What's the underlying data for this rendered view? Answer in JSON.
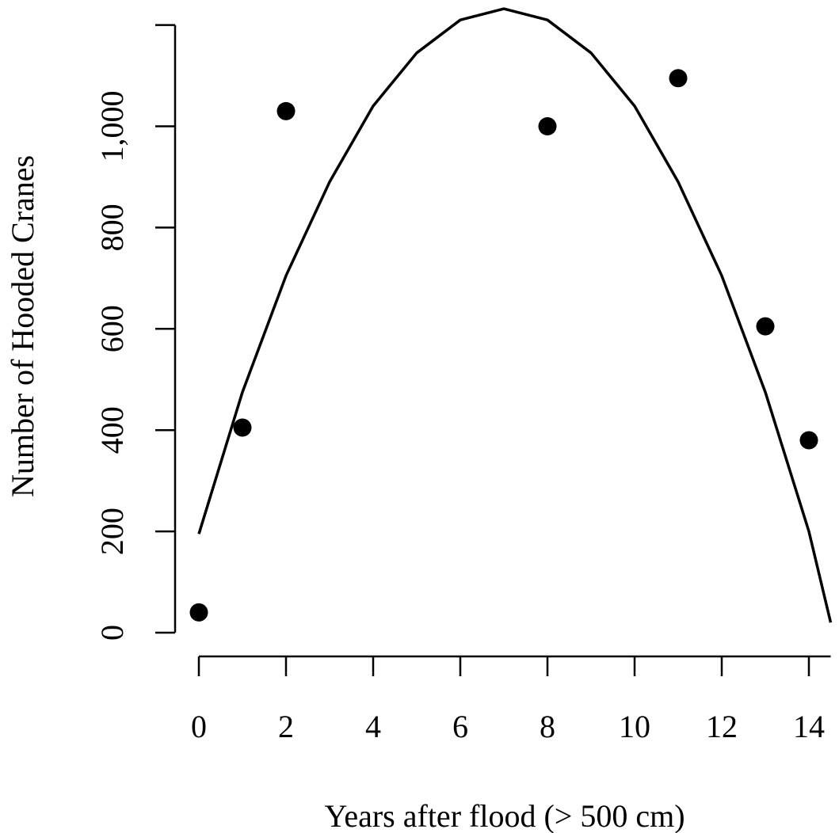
{
  "chart_data": {
    "type": "scatter",
    "xlabel": "Years after flood (> 500 cm)",
    "ylabel": "Number of Hooded Cranes",
    "xlim": [
      0,
      14.5
    ],
    "ylim": [
      0,
      1200
    ],
    "x_ticks": [
      0,
      2,
      4,
      6,
      8,
      10,
      12,
      14
    ],
    "y_ticks": [
      0,
      200,
      400,
      600,
      800,
      1000
    ],
    "y_tick_labels": [
      "0",
      "200",
      "400",
      "600",
      "800",
      "1,000"
    ],
    "grid": false,
    "legend": "none",
    "series": [
      {
        "kind": "points",
        "x": [
          0,
          1,
          2,
          8,
          11,
          13,
          14
        ],
        "y": [
          40,
          405,
          1030,
          1000,
          1095,
          605,
          380
        ]
      },
      {
        "kind": "fitted-curve",
        "x": [
          0,
          1,
          2,
          3,
          4,
          5,
          6,
          7,
          8,
          9,
          10,
          11,
          12,
          13,
          14,
          14.5
        ],
        "y": [
          195,
          475,
          705,
          890,
          1040,
          1145,
          1210,
          1232,
          1210,
          1145,
          1040,
          890,
          705,
          475,
          200,
          20
        ]
      }
    ],
    "colors": {
      "points": "#000000",
      "curve": "#000000",
      "axes": "#000000"
    }
  }
}
